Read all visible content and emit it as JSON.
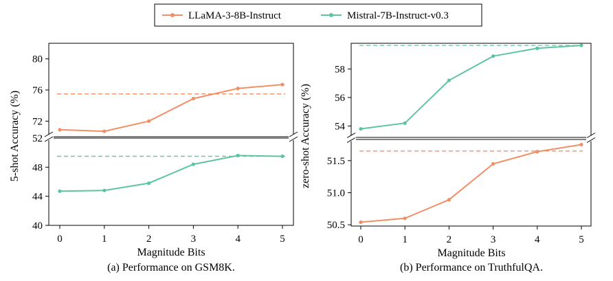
{
  "colors": {
    "LLaMA-3-8B-Instruct": "#f28e66",
    "Mistral-7B-Instruct-v0.3": "#5ec4a0"
  },
  "legend": {
    "entries": [
      "LLaMA-3-8B-Instruct",
      "Mistral-7B-Instruct-v0.3"
    ],
    "placement": "top-center"
  },
  "chart_data": [
    {
      "type": "line",
      "caption": "(a) Performance on GSM8K.",
      "xlabel": "Magnitude Bits",
      "ylabel": "5-shot Accuracy (%)",
      "x": [
        0,
        1,
        2,
        3,
        4,
        5
      ],
      "broken_y_axis": true,
      "upper_panel": {
        "ylim": [
          70,
          82
        ],
        "yticks": [
          72,
          76,
          80
        ],
        "ytick_labels": [
          "72",
          "76",
          "80"
        ],
        "series": [
          {
            "name": "LLaMA-3-8B-Instruct",
            "values": [
              70.9,
              70.7,
              72.0,
              74.9,
              76.2,
              76.7
            ],
            "reference": 75.5
          }
        ]
      },
      "lower_panel": {
        "ylim": [
          40,
          52
        ],
        "yticks": [
          40,
          44,
          48,
          52
        ],
        "ytick_labels": [
          "40",
          "44",
          "48",
          "52"
        ],
        "series": [
          {
            "name": "Mistral-7B-Instruct-v0.3",
            "values": [
              44.7,
              44.8,
              45.8,
              48.4,
              49.6,
              49.5
            ],
            "reference": 49.5
          }
        ]
      }
    },
    {
      "type": "line",
      "caption": "(b) Performance on TruthfulQA.",
      "xlabel": "Magnitude Bits",
      "ylabel": "zero-shot Accuracy (%)",
      "x": [
        0,
        1,
        2,
        3,
        4,
        5
      ],
      "broken_y_axis": true,
      "upper_panel": {
        "ylim": [
          53.2,
          59.8
        ],
        "yticks": [
          54,
          56,
          58
        ],
        "ytick_labels": [
          "54",
          "56",
          "58"
        ],
        "series": [
          {
            "name": "Mistral-7B-Instruct-v0.3",
            "values": [
              53.8,
              54.2,
              57.2,
              58.9,
              59.45,
              59.65
            ],
            "reference": 59.65
          }
        ]
      },
      "lower_panel": {
        "ylim": [
          50.48,
          51.83
        ],
        "yticks": [
          50.5,
          51.0,
          51.5
        ],
        "ytick_labels": [
          "50.5",
          "51.0",
          "51.5"
        ],
        "series": [
          {
            "name": "LLaMA-3-8B-Instruct",
            "values": [
              50.54,
              50.6,
              50.89,
              51.45,
              51.64,
              51.75
            ],
            "reference": 51.65
          }
        ]
      }
    }
  ]
}
